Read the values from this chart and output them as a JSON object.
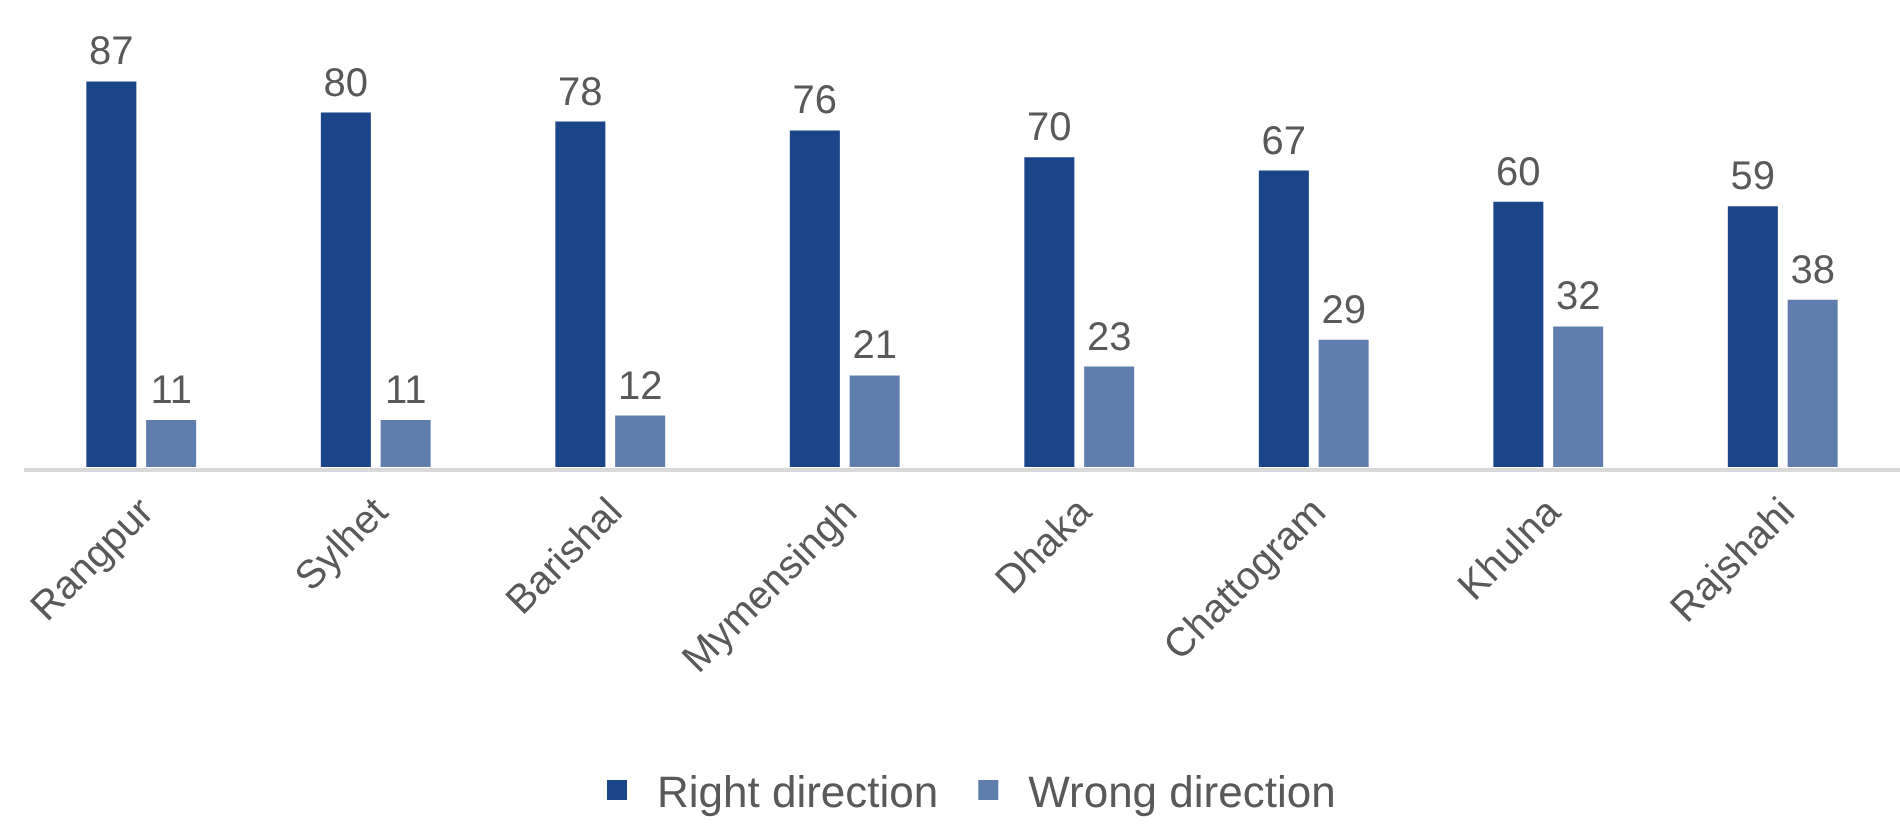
{
  "chart_data": {
    "type": "bar",
    "categories": [
      "Rangpur",
      "Sylhet",
      "Barishal",
      "Mymensingh",
      "Dhaka",
      "Chattogram",
      "Khulna",
      "Rajshahi"
    ],
    "series": [
      {
        "name": "Right direction",
        "color": "#1b4589",
        "values": [
          87,
          80,
          78,
          76,
          70,
          67,
          60,
          59
        ]
      },
      {
        "name": "Wrong direction",
        "color": "#5f7eae",
        "values": [
          11,
          11,
          12,
          21,
          23,
          29,
          32,
          38
        ]
      }
    ],
    "tick_labels": "x",
    "data_labels": true,
    "grid": false,
    "legend": "bottom"
  }
}
